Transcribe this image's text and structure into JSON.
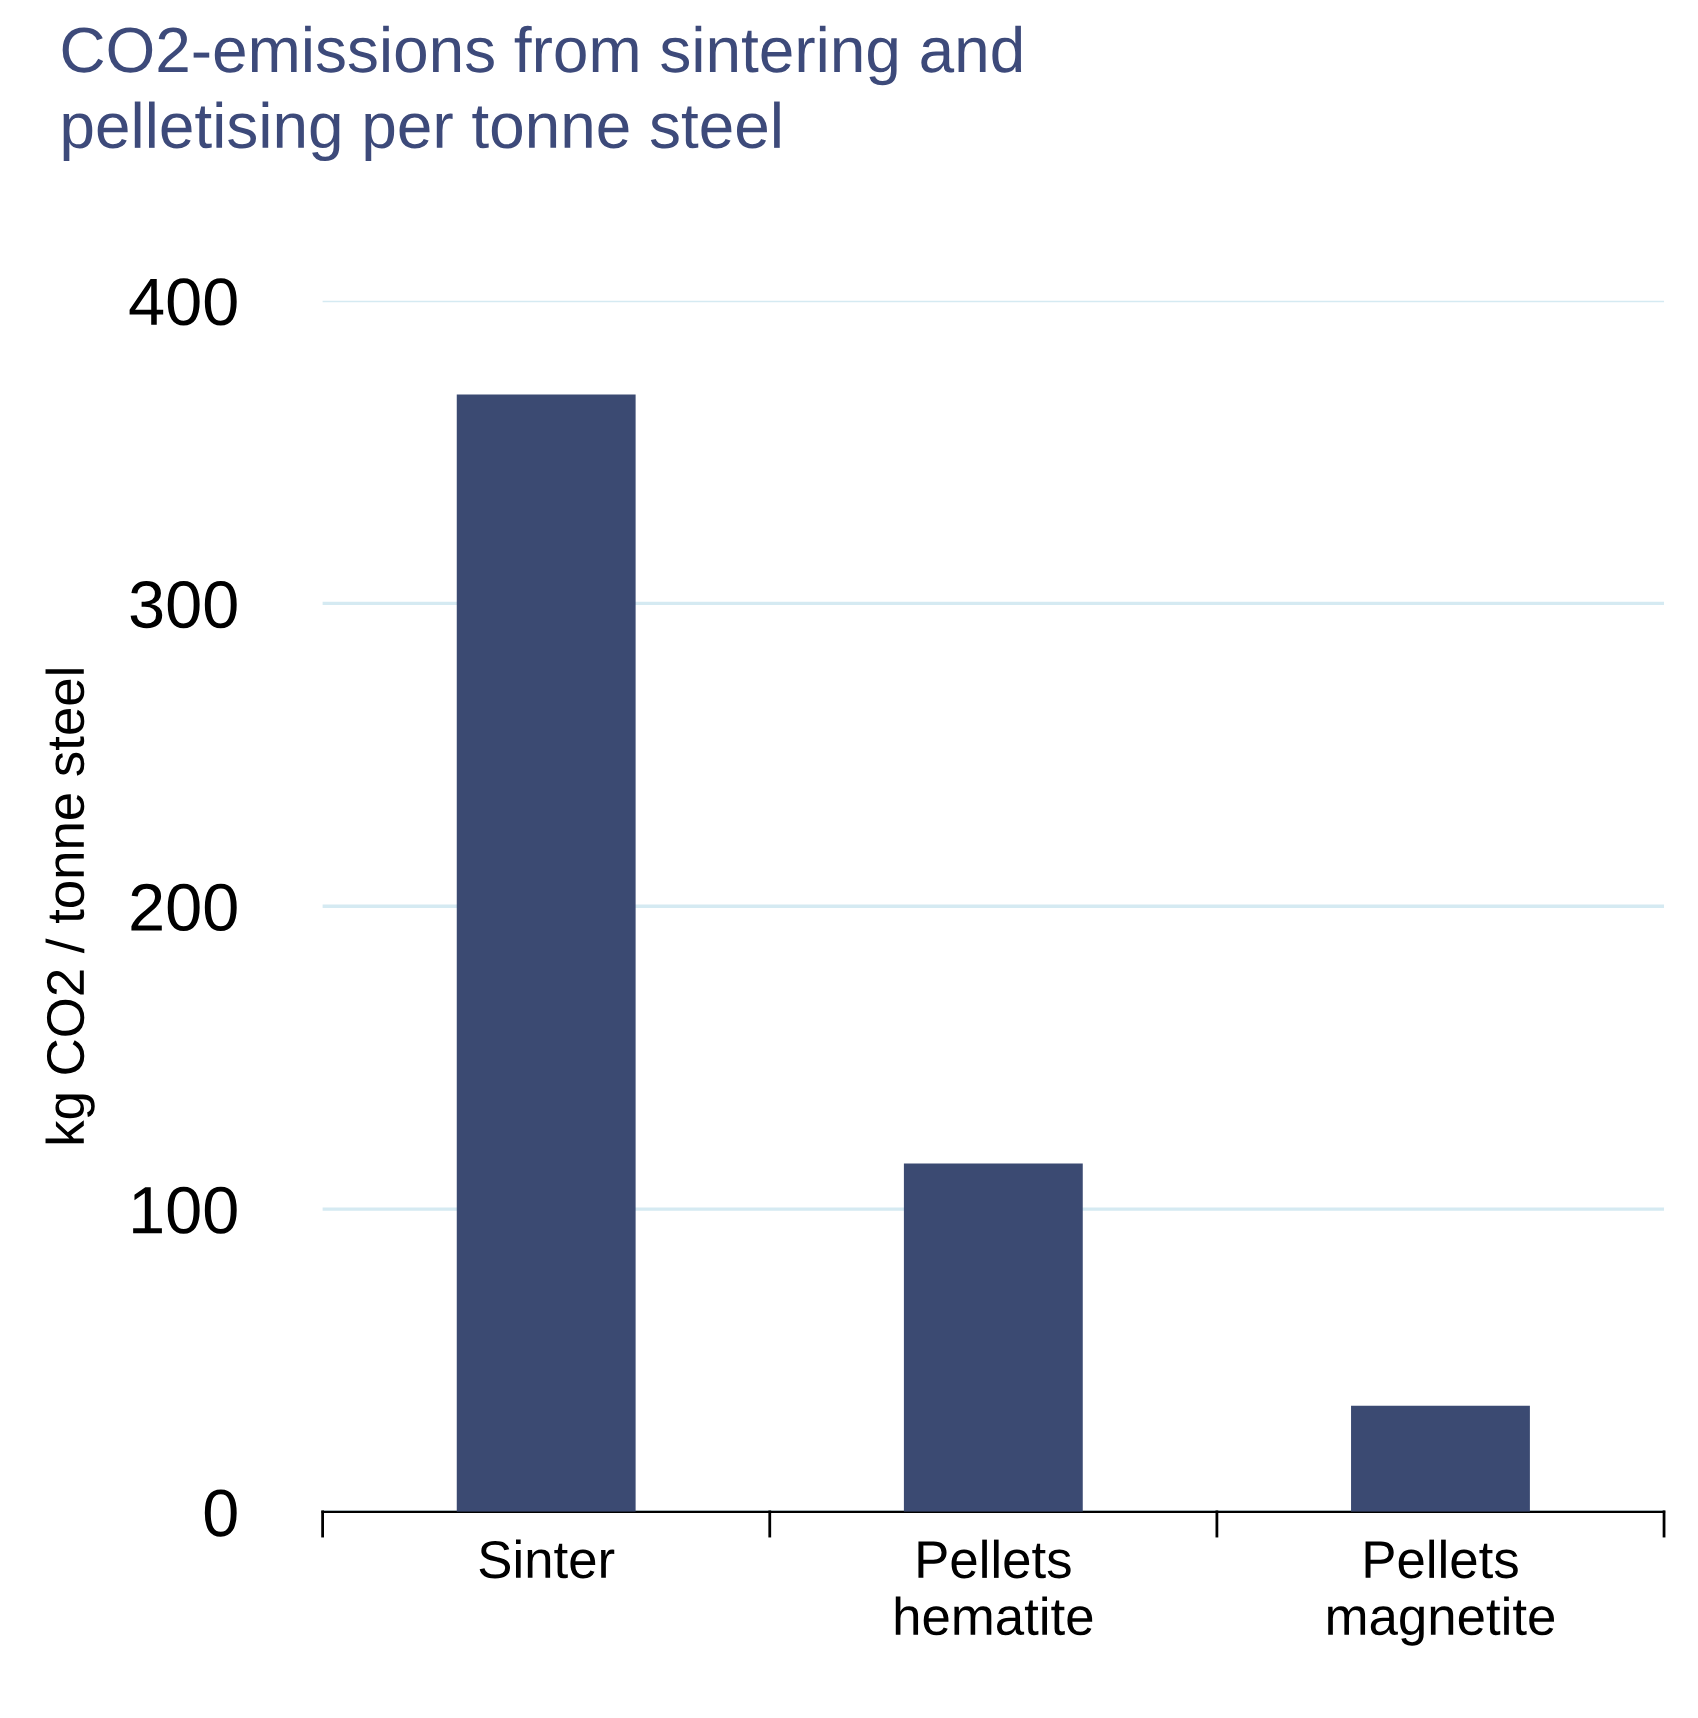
{
  "chart_data": {
    "type": "bar",
    "title": "CO2-emissions from sintering and\npelletising per tonne steel",
    "ylabel": "kg CO2 / tonne steel",
    "categories": [
      "Sinter",
      "Pellets\nhematite",
      "Pellets\nmagnetite"
    ],
    "values": [
      369,
      115,
      35
    ],
    "color": "#3b4a72",
    "ylim": [
      0,
      400
    ],
    "yticks": [
      0,
      100,
      200,
      300,
      400
    ],
    "grid": "y"
  }
}
